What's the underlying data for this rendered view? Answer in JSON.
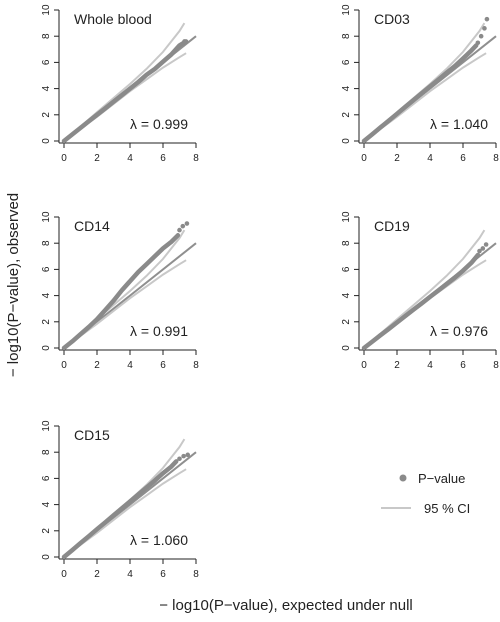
{
  "figure": {
    "ylabel": "− log10(P−value), observed",
    "xlabel": "− log10(P−value), expected under null",
    "colors": {
      "point": "#8a8a8a",
      "ci": "#c8c8c8",
      "ref": "#8f8f8f",
      "axis": "#222222"
    }
  },
  "legend": {
    "point_label": "P−value",
    "ci_label": "95 % CI"
  },
  "chart_data": [
    {
      "type": "scatter",
      "title": "Whole blood",
      "lambda": "λ = 0.999",
      "xlim": [
        0,
        8
      ],
      "ylim": [
        0,
        10
      ],
      "xticks": [
        0,
        2,
        4,
        6,
        8
      ],
      "yticks": [
        0,
        2,
        4,
        6,
        8,
        10
      ],
      "points": [
        [
          0,
          0
        ],
        [
          0.5,
          0.5
        ],
        [
          1,
          1
        ],
        [
          1.5,
          1.5
        ],
        [
          2,
          2
        ],
        [
          2.5,
          2.5
        ],
        [
          3,
          3
        ],
        [
          3.5,
          3.5
        ],
        [
          4,
          4
        ],
        [
          4.5,
          4.5
        ],
        [
          5,
          5.05
        ],
        [
          5.5,
          5.5
        ],
        [
          6,
          6.05
        ],
        [
          6.5,
          6.6
        ],
        [
          7,
          7.3
        ],
        [
          7.4,
          7.6
        ]
      ],
      "outliers": [
        [
          7.3,
          7.6
        ]
      ],
      "ci_upper": [
        [
          0,
          0
        ],
        [
          2,
          2.2
        ],
        [
          4,
          4.35
        ],
        [
          5,
          5.5
        ],
        [
          6,
          6.8
        ],
        [
          7,
          8.4
        ],
        [
          7.3,
          9.0
        ]
      ],
      "ci_lower": [
        [
          0,
          0
        ],
        [
          2,
          1.85
        ],
        [
          4,
          3.8
        ],
        [
          5,
          4.7
        ],
        [
          6,
          5.6
        ],
        [
          7,
          6.4
        ],
        [
          7.4,
          6.7
        ]
      ],
      "reference": [
        [
          0,
          0
        ],
        [
          8,
          8
        ]
      ]
    },
    {
      "type": "scatter",
      "title": "CD03",
      "lambda": "λ = 1.040",
      "xlim": [
        0,
        8
      ],
      "ylim": [
        0,
        10
      ],
      "xticks": [
        0,
        2,
        4,
        6,
        8
      ],
      "yticks": [
        0,
        2,
        4,
        6,
        8,
        10
      ],
      "points": [
        [
          0,
          0
        ],
        [
          0.5,
          0.52
        ],
        [
          1,
          1.04
        ],
        [
          1.5,
          1.56
        ],
        [
          2,
          2.08
        ],
        [
          2.5,
          2.6
        ],
        [
          3,
          3.12
        ],
        [
          3.5,
          3.64
        ],
        [
          4,
          4.16
        ],
        [
          4.5,
          4.68
        ],
        [
          5,
          5.2
        ],
        [
          5.5,
          5.72
        ],
        [
          6,
          6.3
        ],
        [
          6.5,
          6.9
        ],
        [
          6.8,
          7.3
        ]
      ],
      "outliers": [
        [
          6.9,
          7.5
        ],
        [
          7.1,
          8.0
        ],
        [
          7.3,
          8.6
        ],
        [
          7.45,
          9.3
        ]
      ],
      "ci_upper": [
        [
          0,
          0
        ],
        [
          2,
          2.2
        ],
        [
          4,
          4.35
        ],
        [
          5,
          5.5
        ],
        [
          6,
          6.8
        ],
        [
          7,
          8.4
        ],
        [
          7.3,
          9.0
        ]
      ],
      "ci_lower": [
        [
          0,
          0
        ],
        [
          2,
          1.85
        ],
        [
          4,
          3.8
        ],
        [
          5,
          4.7
        ],
        [
          6,
          5.6
        ],
        [
          7,
          6.4
        ],
        [
          7.4,
          6.7
        ]
      ],
      "reference": [
        [
          0,
          0
        ],
        [
          8,
          8
        ]
      ]
    },
    {
      "type": "scatter",
      "title": "CD14",
      "lambda": "λ = 0.991",
      "xlim": [
        0,
        8
      ],
      "ylim": [
        0,
        10
      ],
      "xticks": [
        0,
        2,
        4,
        6,
        8
      ],
      "yticks": [
        0,
        2,
        4,
        6,
        8,
        10
      ],
      "points": [
        [
          0,
          0
        ],
        [
          0.5,
          0.5
        ],
        [
          1,
          1.05
        ],
        [
          1.5,
          1.6
        ],
        [
          2,
          2.2
        ],
        [
          2.5,
          2.9
        ],
        [
          3,
          3.6
        ],
        [
          3.5,
          4.4
        ],
        [
          4,
          5.1
        ],
        [
          4.5,
          5.8
        ],
        [
          5,
          6.4
        ],
        [
          5.5,
          7.0
        ],
        [
          6,
          7.6
        ],
        [
          6.5,
          8.1
        ],
        [
          6.9,
          8.6
        ]
      ],
      "outliers": [
        [
          7.0,
          9.0
        ],
        [
          7.2,
          9.3
        ],
        [
          7.45,
          9.5
        ]
      ],
      "ci_upper": [
        [
          0,
          0
        ],
        [
          2,
          2.2
        ],
        [
          4,
          4.35
        ],
        [
          5,
          5.5
        ],
        [
          6,
          6.8
        ],
        [
          7,
          8.4
        ],
        [
          7.3,
          9.0
        ]
      ],
      "ci_lower": [
        [
          0,
          0
        ],
        [
          2,
          1.85
        ],
        [
          4,
          3.8
        ],
        [
          5,
          4.7
        ],
        [
          6,
          5.6
        ],
        [
          7,
          6.4
        ],
        [
          7.4,
          6.7
        ]
      ],
      "reference": [
        [
          0,
          0
        ],
        [
          8,
          8
        ]
      ]
    },
    {
      "type": "scatter",
      "title": "CD19",
      "lambda": "λ = 0.976",
      "xlim": [
        0,
        8
      ],
      "ylim": [
        0,
        10
      ],
      "xticks": [
        0,
        2,
        4,
        6,
        8
      ],
      "yticks": [
        0,
        2,
        4,
        6,
        8,
        10
      ],
      "points": [
        [
          0,
          0
        ],
        [
          0.5,
          0.49
        ],
        [
          1,
          0.98
        ],
        [
          1.5,
          1.46
        ],
        [
          2,
          1.95
        ],
        [
          2.5,
          2.44
        ],
        [
          3,
          2.93
        ],
        [
          3.5,
          3.41
        ],
        [
          4,
          3.9
        ],
        [
          4.5,
          4.39
        ],
        [
          5,
          4.88
        ],
        [
          5.5,
          5.37
        ],
        [
          6,
          5.9
        ],
        [
          6.5,
          6.5
        ],
        [
          6.9,
          7.1
        ]
      ],
      "outliers": [
        [
          7.0,
          7.4
        ],
        [
          7.2,
          7.6
        ],
        [
          7.4,
          7.9
        ]
      ],
      "ci_upper": [
        [
          0,
          0
        ],
        [
          2,
          2.2
        ],
        [
          4,
          4.35
        ],
        [
          5,
          5.5
        ],
        [
          6,
          6.8
        ],
        [
          7,
          8.4
        ],
        [
          7.3,
          9.0
        ]
      ],
      "ci_lower": [
        [
          0,
          0
        ],
        [
          2,
          1.85
        ],
        [
          4,
          3.8
        ],
        [
          5,
          4.7
        ],
        [
          6,
          5.6
        ],
        [
          7,
          6.4
        ],
        [
          7.4,
          6.7
        ]
      ],
      "reference": [
        [
          0,
          0
        ],
        [
          8,
          8
        ]
      ]
    },
    {
      "type": "scatter",
      "title": "CD15",
      "lambda": "λ = 1.060",
      "xlim": [
        0,
        8
      ],
      "ylim": [
        0,
        10
      ],
      "xticks": [
        0,
        2,
        4,
        6,
        8
      ],
      "yticks": [
        0,
        2,
        4,
        6,
        8,
        10
      ],
      "points": [
        [
          0,
          0
        ],
        [
          0.5,
          0.53
        ],
        [
          1,
          1.06
        ],
        [
          1.5,
          1.59
        ],
        [
          2,
          2.12
        ],
        [
          2.5,
          2.65
        ],
        [
          3,
          3.18
        ],
        [
          3.5,
          3.71
        ],
        [
          4,
          4.24
        ],
        [
          4.5,
          4.77
        ],
        [
          5,
          5.3
        ],
        [
          5.5,
          5.83
        ],
        [
          6,
          6.4
        ],
        [
          6.5,
          6.9
        ],
        [
          6.8,
          7.3
        ]
      ],
      "outliers": [
        [
          7.0,
          7.5
        ],
        [
          7.25,
          7.7
        ],
        [
          7.5,
          7.8
        ]
      ],
      "ci_upper": [
        [
          0,
          0
        ],
        [
          2,
          2.2
        ],
        [
          4,
          4.35
        ],
        [
          5,
          5.5
        ],
        [
          6,
          6.8
        ],
        [
          7,
          8.4
        ],
        [
          7.3,
          9.0
        ]
      ],
      "ci_lower": [
        [
          0,
          0
        ],
        [
          2,
          1.85
        ],
        [
          4,
          3.8
        ],
        [
          5,
          4.7
        ],
        [
          6,
          5.6
        ],
        [
          7,
          6.4
        ],
        [
          7.4,
          6.7
        ]
      ],
      "reference": [
        [
          0,
          0
        ],
        [
          8,
          8
        ]
      ]
    }
  ]
}
